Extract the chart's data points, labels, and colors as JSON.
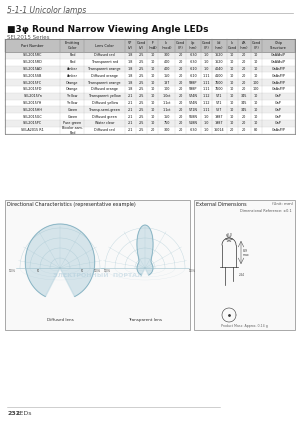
{
  "page_title": "5-1-1 Unicolor lamps",
  "section_title": "■3φ Round Narrow Viewing Angle LEDs",
  "series_label": "SEL2015 Series",
  "bg_color": "#ffffff",
  "col_defs": [
    [
      "Part Number",
      30
    ],
    [
      "Emitting\nColor",
      13
    ],
    [
      "Lens Color",
      22
    ],
    [
      "VF\n(V)",
      6
    ],
    [
      "Cond\n(V)",
      6
    ],
    [
      "IF\n(mA)",
      6
    ],
    [
      "Iv\n(mcd)",
      9
    ],
    [
      "Cond\n(IF)",
      6
    ],
    [
      "λp\n(nm)",
      8
    ],
    [
      "Cond\n(IF)",
      6
    ],
    [
      "λd\n(nm)",
      8
    ],
    [
      "Iv\nCond",
      6
    ],
    [
      "Δλ\n(nm)",
      7
    ],
    [
      "Cond\n(IF)",
      6
    ],
    [
      "Chip\nStructure",
      18
    ]
  ],
  "row_data": [
    [
      "SEL2015RC",
      "Red",
      "Diffused red",
      "1.8",
      "2.5",
      "10",
      "300",
      "20",
      "-630",
      "1.0",
      "1620",
      "10",
      "20",
      "10",
      "GaAlAs/P"
    ],
    [
      "SEL2015RD",
      "Red",
      "Transparent red",
      "1.8",
      "2.5",
      "10",
      "400",
      "20",
      "-630",
      "1.0",
      "1620",
      "10",
      "20",
      "10",
      "GaAlAs/P"
    ],
    [
      "SEL2015AD",
      "Amber",
      "Transparent orange",
      "1.8",
      "2.5",
      "10",
      "400",
      "20",
      "-610",
      "1.0",
      "4040",
      "10",
      "20",
      "10",
      "GaAsP/P"
    ],
    [
      "SEL2015SB",
      "Amber",
      "Diffused orange",
      "1.8",
      "2.5",
      "10",
      "150",
      "20",
      "-610",
      "1.11",
      "4100",
      "10",
      "20",
      "10",
      "GaAsP/P"
    ],
    [
      "SEL2015FC",
      "Orange",
      "Transparent orange",
      "1.8",
      "2.5",
      "10",
      "187",
      "20",
      "598P",
      "1.11",
      "7600",
      "10",
      "20",
      "100",
      "GaAsP/P"
    ],
    [
      "SEL2015FD",
      "Orange",
      "Diffused orange",
      "1.8",
      "2.5",
      "10",
      "100",
      "20",
      "598P",
      "1.11",
      "7600",
      "10",
      "20",
      "100",
      "GaAsP/P"
    ],
    [
      "SEL2015Yn",
      "Yellow",
      "Transparent yellow",
      "2.1",
      "2.5",
      "10",
      "1.0ct",
      "20",
      "574N",
      "1.12",
      "571",
      "10",
      "345",
      "10",
      "GaP"
    ],
    [
      "SEL2015YH",
      "Yellow",
      "Diffused yellow",
      "2.1",
      "2.5",
      "10",
      "1.1ct",
      "20",
      "574N",
      "1.12",
      "571",
      "10",
      "345",
      "10",
      "GaP"
    ],
    [
      "SEL2015HH",
      "Green",
      "Transp.semi-green",
      "2.1",
      "2.5",
      "10",
      "1.1ct",
      "20",
      "571N",
      "1.11",
      "527",
      "10",
      "345",
      "10",
      "GaP"
    ],
    [
      "SEL2015GC",
      "Green",
      "Diffused green",
      "2.1",
      "2.5",
      "10",
      "150",
      "20",
      "568N",
      "1.0",
      "1987",
      "10",
      "20",
      "10",
      "GaP"
    ],
    [
      "SEL2015PC",
      "Pure green",
      "Water clear",
      "2.1",
      "2.5",
      "10",
      "750",
      "20",
      "518N",
      "1.0",
      "1987",
      "10",
      "20",
      "10",
      "GaP"
    ],
    [
      "SELA2015 R1",
      "Bicolor asm.\nRed",
      "Diffused red",
      "2.1",
      "2.5",
      "20",
      "300",
      "20",
      "-630",
      "1.0",
      "16014",
      "20",
      "20",
      "80",
      "GaAsP/P"
    ]
  ],
  "directional_title": "Directional Characteristics (representative example)",
  "external_title": "External Dimensions",
  "unit_note": "(Unit: mm)",
  "dim_reference": "Dimensional Reference: ±0.1",
  "bottom_label": "232",
  "bottom_label2": "LEDs",
  "watermark": "ЭЛЕКТРОННЫЙ  ПОРТАЛ"
}
